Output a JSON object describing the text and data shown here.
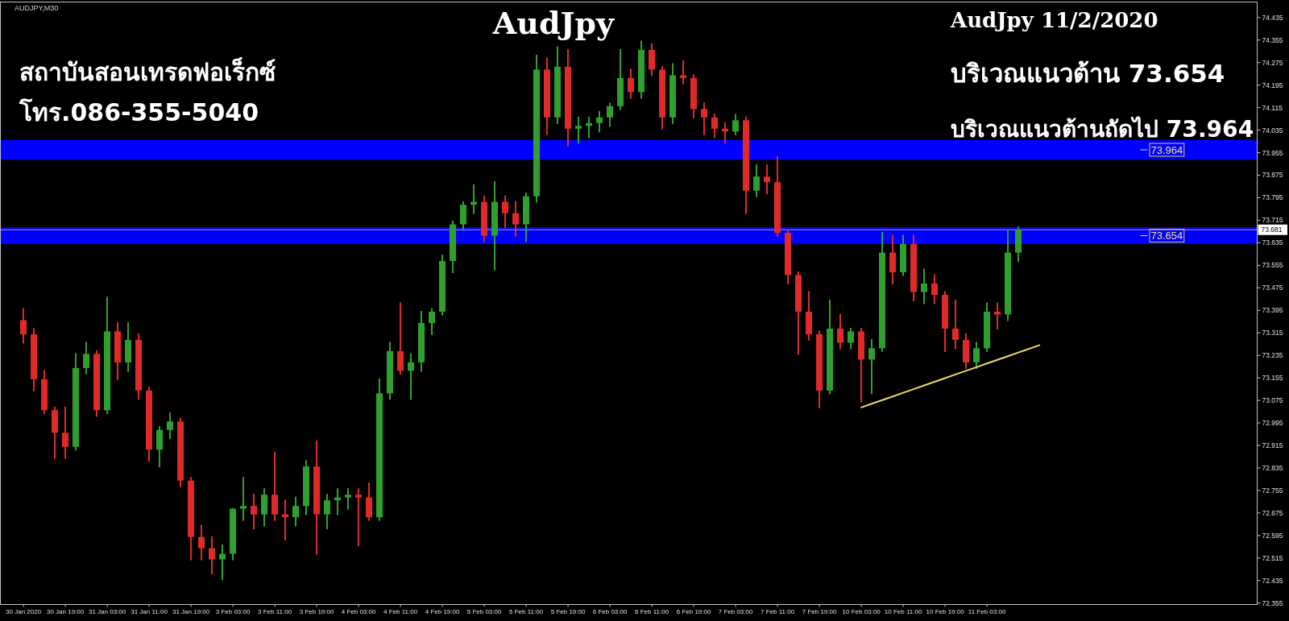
{
  "chart_data": {
    "type": "candlestick",
    "title": "AudJpy",
    "subtitle": "AUDJPY,M30",
    "categories": [
      "30 Jan 2020",
      null,
      null,
      null,
      "30 Jan 19:00",
      null,
      null,
      null,
      "31 Jan 03:00",
      null,
      null,
      null,
      "31 Jan 11:00",
      null,
      null,
      null,
      "31 Jan 19:00",
      null,
      null,
      null,
      "3 Feb 03:00",
      null,
      null,
      null,
      "3 Feb 11:00",
      null,
      null,
      null,
      "3 Feb 19:00",
      null,
      null,
      null,
      "4 Feb 03:00",
      null,
      null,
      null,
      "4 Feb 11:00",
      null,
      null,
      null,
      "4 Feb 19:00",
      null,
      null,
      null,
      "5 Feb 03:00",
      null,
      null,
      null,
      "5 Feb 11:00",
      null,
      null,
      null,
      "5 Feb 19:00",
      null,
      null,
      null,
      "6 Feb 03:00",
      null,
      null,
      null,
      "6 Feb 11:00",
      null,
      null,
      null,
      "6 Feb 19:00",
      null,
      null,
      null,
      "7 Feb 03:00",
      null,
      null,
      null,
      "7 Feb 11:00",
      null,
      null,
      null,
      "7 Feb 19:00",
      null,
      null,
      null,
      "10 Feb 03:00",
      null,
      null,
      null,
      "10 Feb 11:00",
      null,
      null,
      null,
      "10 Feb 19:00",
      null,
      null,
      null,
      "11 Feb 03:00",
      null,
      null,
      null,
      null,
      null,
      null,
      null,
      null,
      null,
      null,
      null,
      null,
      null,
      null,
      null,
      null,
      null,
      null,
      null,
      null,
      null,
      null,
      null,
      null,
      null
    ],
    "ohlc": [
      [
        73.36,
        73.4,
        73.28,
        73.31
      ],
      [
        73.31,
        73.33,
        73.11,
        73.15
      ],
      [
        73.15,
        73.18,
        73.03,
        73.04
      ],
      [
        73.04,
        73.05,
        72.87,
        72.96
      ],
      [
        72.96,
        73.05,
        72.87,
        72.91
      ],
      [
        72.91,
        73.24,
        72.9,
        73.19
      ],
      [
        73.19,
        73.28,
        73.17,
        73.24
      ],
      [
        73.24,
        73.25,
        73.02,
        73.04
      ],
      [
        73.04,
        73.44,
        73.03,
        73.32
      ],
      [
        73.32,
        73.35,
        73.15,
        73.21
      ],
      [
        73.21,
        73.35,
        73.18,
        73.29
      ],
      [
        73.29,
        73.31,
        73.08,
        73.11
      ],
      [
        73.11,
        73.12,
        72.86,
        72.9
      ],
      [
        72.9,
        72.98,
        72.84,
        72.97
      ],
      [
        72.97,
        73.03,
        72.94,
        73.0
      ],
      [
        73.0,
        73.01,
        72.77,
        72.79
      ],
      [
        72.79,
        72.8,
        72.51,
        72.59
      ],
      [
        72.59,
        72.63,
        72.51,
        72.55
      ],
      [
        72.55,
        72.59,
        72.46,
        72.51
      ],
      [
        72.51,
        72.56,
        72.44,
        72.53
      ],
      [
        72.53,
        72.69,
        72.51,
        72.69
      ],
      [
        72.69,
        72.8,
        72.65,
        72.7
      ],
      [
        72.7,
        72.74,
        72.62,
        72.67
      ],
      [
        72.67,
        72.76,
        72.63,
        72.74
      ],
      [
        72.74,
        72.89,
        72.65,
        72.67
      ],
      [
        72.67,
        72.72,
        72.58,
        72.66
      ],
      [
        72.66,
        72.73,
        72.63,
        72.7
      ],
      [
        72.7,
        72.86,
        72.67,
        72.84
      ],
      [
        72.84,
        72.93,
        72.53,
        72.67
      ],
      [
        72.67,
        72.74,
        72.62,
        72.72
      ],
      [
        72.72,
        72.76,
        72.67,
        72.73
      ],
      [
        72.73,
        72.76,
        72.69,
        72.74
      ],
      [
        72.74,
        72.76,
        72.56,
        72.73
      ],
      [
        72.73,
        72.78,
        72.65,
        72.66
      ],
      [
        72.66,
        73.15,
        72.65,
        73.1
      ],
      [
        73.1,
        73.28,
        73.08,
        73.25
      ],
      [
        73.25,
        73.42,
        73.17,
        73.18
      ],
      [
        73.18,
        73.24,
        73.08,
        73.21
      ],
      [
        73.21,
        73.39,
        73.18,
        73.35
      ],
      [
        73.35,
        73.4,
        73.31,
        73.39
      ],
      [
        73.39,
        73.59,
        73.38,
        73.57
      ],
      [
        73.57,
        73.71,
        73.53,
        73.7
      ],
      [
        73.7,
        73.78,
        73.68,
        73.77
      ],
      [
        73.77,
        73.84,
        73.74,
        73.78
      ],
      [
        73.78,
        73.8,
        73.64,
        73.66
      ],
      [
        73.66,
        73.85,
        73.54,
        73.78
      ],
      [
        73.78,
        73.8,
        73.69,
        73.74
      ],
      [
        73.74,
        73.78,
        73.66,
        73.7
      ],
      [
        73.7,
        73.81,
        73.64,
        73.8
      ],
      [
        73.8,
        74.3,
        73.78,
        74.25
      ],
      [
        74.25,
        74.29,
        74.02,
        74.08
      ],
      [
        74.08,
        74.33,
        74.06,
        74.26
      ],
      [
        74.26,
        74.32,
        73.98,
        74.04
      ],
      [
        74.04,
        74.08,
        73.99,
        74.05
      ],
      [
        74.05,
        74.08,
        74.01,
        74.06
      ],
      [
        74.06,
        74.1,
        74.03,
        74.08
      ],
      [
        74.08,
        74.13,
        74.05,
        74.12
      ],
      [
        74.12,
        74.32,
        74.11,
        74.22
      ],
      [
        74.22,
        74.25,
        74.15,
        74.17
      ],
      [
        74.17,
        74.35,
        74.15,
        74.32
      ],
      [
        74.32,
        74.34,
        74.23,
        74.25
      ],
      [
        74.25,
        74.26,
        74.04,
        74.08
      ],
      [
        74.08,
        74.27,
        74.06,
        74.23
      ],
      [
        74.23,
        74.28,
        74.2,
        74.22
      ],
      [
        74.22,
        74.23,
        74.08,
        74.11
      ],
      [
        74.11,
        74.13,
        74.02,
        74.08
      ],
      [
        74.08,
        74.09,
        74.01,
        74.04
      ],
      [
        74.04,
        74.06,
        73.99,
        74.03
      ],
      [
        74.03,
        74.09,
        74.02,
        74.07
      ],
      [
        74.07,
        74.08,
        73.74,
        73.82
      ],
      [
        73.82,
        73.91,
        73.8,
        73.87
      ],
      [
        73.87,
        73.91,
        73.81,
        73.85
      ],
      [
        73.85,
        73.94,
        73.66,
        73.67
      ],
      [
        73.67,
        73.68,
        73.49,
        73.52
      ],
      [
        73.52,
        73.53,
        73.24,
        73.39
      ],
      [
        73.39,
        73.46,
        73.29,
        73.31
      ],
      [
        73.31,
        73.32,
        73.05,
        73.11
      ],
      [
        73.11,
        73.43,
        73.1,
        73.33
      ],
      [
        73.33,
        73.38,
        73.26,
        73.28
      ],
      [
        73.28,
        73.33,
        73.26,
        73.32
      ],
      [
        73.32,
        73.33,
        73.07,
        73.22
      ],
      [
        73.22,
        73.29,
        73.1,
        73.26
      ],
      [
        73.26,
        73.67,
        73.25,
        73.6
      ],
      [
        73.6,
        73.66,
        73.49,
        73.53
      ],
      [
        73.53,
        73.66,
        73.52,
        73.63
      ],
      [
        73.63,
        73.66,
        73.43,
        73.46
      ],
      [
        73.46,
        73.54,
        73.42,
        73.49
      ],
      [
        73.49,
        73.52,
        73.42,
        73.45
      ],
      [
        73.45,
        73.46,
        73.25,
        73.33
      ],
      [
        73.33,
        73.43,
        73.26,
        73.29
      ],
      [
        73.29,
        73.31,
        73.19,
        73.21
      ],
      [
        73.21,
        73.28,
        73.19,
        73.26
      ],
      [
        73.26,
        73.42,
        73.25,
        73.39
      ],
      [
        73.39,
        73.42,
        73.33,
        73.38
      ],
      [
        73.38,
        73.68,
        73.36,
        73.6
      ],
      [
        73.6,
        73.69,
        73.57,
        73.68
      ],
      null,
      null,
      null,
      null,
      null,
      null,
      null,
      null,
      null,
      null,
      null,
      null,
      null,
      null,
      null,
      null,
      null,
      null,
      null,
      null,
      null,
      null
    ],
    "colors": [
      "#e02a2a",
      "#e02a2a",
      "#e02a2a",
      "#e02a2a",
      "#e02a2a",
      "#2fa02f",
      "#2fa02f",
      "#e02a2a",
      "#2fa02f",
      "#e02a2a",
      "#2fa02f",
      "#e02a2a",
      "#e02a2a",
      "#2fa02f",
      "#2fa02f",
      "#e02a2a",
      "#e02a2a",
      "#e02a2a",
      "#e02a2a",
      "#2fa02f",
      "#2fa02f",
      "#2fa02f",
      "#e02a2a",
      "#2fa02f",
      "#e02a2a",
      "#e02a2a",
      "#2fa02f",
      "#2fa02f",
      "#e02a2a",
      "#2fa02f",
      "#2fa02f",
      "#2fa02f",
      "#e02a2a",
      "#e02a2a",
      "#2fa02f",
      "#2fa02f",
      "#e02a2a",
      "#2fa02f",
      "#2fa02f",
      "#2fa02f",
      "#2fa02f",
      "#2fa02f",
      "#2fa02f",
      "#2fa02f",
      "#e02a2a",
      "#2fa02f",
      "#e02a2a",
      "#e02a2a",
      "#2fa02f",
      "#2fa02f",
      "#e02a2a",
      "#2fa02f",
      "#e02a2a",
      "#2fa02f",
      "#2fa02f",
      "#2fa02f",
      "#2fa02f",
      "#2fa02f",
      "#e02a2a",
      "#2fa02f",
      "#e02a2a",
      "#e02a2a",
      "#2fa02f",
      "#e02a2a",
      "#e02a2a",
      "#e02a2a",
      "#e02a2a",
      "#e02a2a",
      "#2fa02f",
      "#e02a2a",
      "#2fa02f",
      "#e02a2a",
      "#e02a2a",
      "#e02a2a",
      "#e02a2a",
      "#e02a2a",
      "#e02a2a",
      "#2fa02f",
      "#e02a2a",
      "#2fa02f",
      "#e02a2a",
      "#2fa02f",
      "#2fa02f",
      "#e02a2a",
      "#2fa02f",
      "#e02a2a",
      "#2fa02f",
      "#e02a2a",
      "#e02a2a",
      "#e02a2a",
      "#e02a2a",
      "#2fa02f",
      "#2fa02f",
      "#e02a2a",
      "#2fa02f",
      "#2fa02f",
      null,
      null,
      null,
      null,
      null,
      null,
      null,
      null,
      null,
      null,
      null,
      null,
      null,
      null,
      null,
      null,
      null,
      null,
      null,
      null,
      null,
      null
    ],
    "series": [
      {
        "type": "line",
        "color": "#e8dc6e",
        "values": [
          null,
          null,
          null,
          null,
          null,
          null,
          null,
          null,
          null,
          null,
          null,
          null,
          null,
          null,
          null,
          null,
          null,
          null,
          null,
          null,
          null,
          null,
          null,
          null,
          null,
          null,
          null,
          null,
          null,
          null,
          null,
          null,
          null,
          null,
          null,
          null,
          null,
          null,
          null,
          null,
          null,
          null,
          null,
          null,
          null,
          null,
          null,
          null,
          null,
          null,
          null,
          null,
          null,
          null,
          null,
          null,
          null,
          null,
          null,
          null,
          null,
          null,
          null,
          null,
          null,
          null,
          null,
          null,
          null,
          null,
          null,
          null,
          null,
          null,
          null,
          null,
          null,
          null,
          null,
          null,
          73.05,
          73.063,
          73.076,
          73.089,
          73.102,
          73.115,
          73.128,
          73.141,
          73.154,
          73.167,
          73.18,
          73.193,
          73.206,
          73.219,
          73.232,
          73.245,
          73.258,
          73.271,
          null,
          null,
          null,
          null,
          null,
          null,
          null,
          null,
          null,
          null,
          null,
          null,
          null,
          null,
          null,
          null,
          null,
          null,
          null,
          null
        ]
      }
    ],
    "ylim": [
      72.35,
      74.49
    ],
    "yticks": [
      72.355,
      72.435,
      72.515,
      72.595,
      72.675,
      72.755,
      72.835,
      72.915,
      72.995,
      73.075,
      73.155,
      73.235,
      73.315,
      73.395,
      73.475,
      73.555,
      73.635,
      73.715,
      73.795,
      73.875,
      73.955,
      74.035,
      74.115,
      74.195,
      74.275,
      74.355,
      74.435
    ],
    "ref_lines": [
      {
        "axis": "y",
        "value": 73.681,
        "label": "73.681",
        "color": "#a0a0a0"
      }
    ],
    "bands": [
      {
        "axis": "y",
        "from": 73.93,
        "to": 74.0,
        "label": "73.964",
        "color": "#0000ff"
      },
      {
        "axis": "y",
        "from": 73.63,
        "to": 73.69,
        "label": "73.654",
        "color": "#0000ff"
      }
    ],
    "annotations": [
      "AudJpy 11/2/2020",
      "บริเวณแนวต้าน 73.654",
      "บริเวณแนวต้านถัดไป 73.964",
      "สถาบันสอนเทรดฟอเร็กซ์",
      "โทร.086-355-5040"
    ]
  }
}
